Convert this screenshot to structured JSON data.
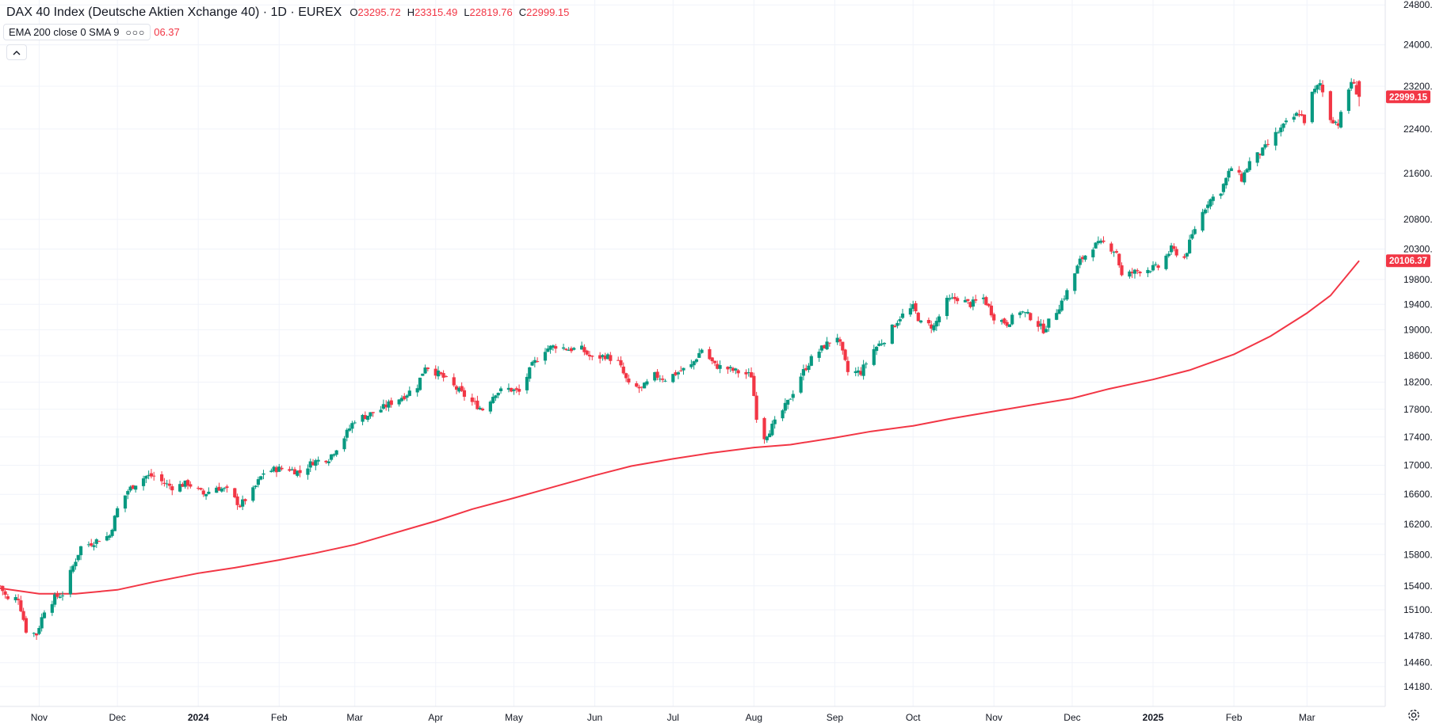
{
  "legend": {
    "title": "DAX 40 Index (Deutsche Aktien Xchange 40) · 1D · EUREX",
    "open_key": "O",
    "open": "23295.72",
    "high_key": "H",
    "high": "23315.49",
    "low_key": "L",
    "low": "22819.76",
    "close_key": "C",
    "close": "22999.15"
  },
  "indicator": {
    "label": "EMA 200 close 0 SMA 9",
    "more_icon": "more-dots-icon",
    "value_partial": "06.37"
  },
  "collapse_icon": "chevron-up-icon",
  "settings_icon": "gear-icon",
  "colors": {
    "up": "#089981",
    "down": "#f23645",
    "ema": "#f23645",
    "grid": "#f0f3fa",
    "axis_text": "#131722"
  },
  "chart_data": {
    "type": "candlestick",
    "title": "DAX 40 Index (Deutsche Aktien Xchange 40) · 1D · EUREX",
    "y_range": [
      13950,
      24900
    ],
    "y_scale": "log",
    "y_ticks": [
      "24800.00",
      "24000.00",
      "23200.00",
      "22400.00",
      "21600.00",
      "20800.00",
      "20300.00",
      "19800.00",
      "19400.00",
      "19000.00",
      "18600.00",
      "18200.00",
      "17800.00",
      "17400.00",
      "17000.00",
      "16600.00",
      "16200.00",
      "15800.00",
      "15400.00",
      "15100.00",
      "14780.00",
      "14460.00",
      "14180.00"
    ],
    "x_range": [
      "2023-10-17",
      "2025-03-31"
    ],
    "x_ticks": [
      {
        "date": "2023-11-01",
        "label": "Nov",
        "bold": false
      },
      {
        "date": "2023-12-01",
        "label": "Dec",
        "bold": false
      },
      {
        "date": "2024-01-01",
        "label": "2024",
        "bold": true
      },
      {
        "date": "2024-02-01",
        "label": "Feb",
        "bold": false
      },
      {
        "date": "2024-03-01",
        "label": "Mar",
        "bold": false
      },
      {
        "date": "2024-04-01",
        "label": "Apr",
        "bold": false
      },
      {
        "date": "2024-05-01",
        "label": "May",
        "bold": false
      },
      {
        "date": "2024-06-01",
        "label": "Jun",
        "bold": false
      },
      {
        "date": "2024-07-01",
        "label": "Jul",
        "bold": false
      },
      {
        "date": "2024-08-01",
        "label": "Aug",
        "bold": false
      },
      {
        "date": "2024-09-01",
        "label": "Sep",
        "bold": false
      },
      {
        "date": "2024-10-01",
        "label": "Oct",
        "bold": false
      },
      {
        "date": "2024-11-01",
        "label": "Nov",
        "bold": false
      },
      {
        "date": "2024-12-01",
        "label": "Dec",
        "bold": false
      },
      {
        "date": "2025-01-01",
        "label": "2025",
        "bold": true
      },
      {
        "date": "2025-02-01",
        "label": "Feb",
        "bold": false
      },
      {
        "date": "2025-03-01",
        "label": "Mar",
        "bold": false
      }
    ],
    "close_path": [
      [
        "2023-10-17",
        15400
      ],
      [
        "2023-10-20",
        15220
      ],
      [
        "2023-10-24",
        15250
      ],
      [
        "2023-10-27",
        14850
      ],
      [
        "2023-10-31",
        14800
      ],
      [
        "2023-11-03",
        15100
      ],
      [
        "2023-11-07",
        15250
      ],
      [
        "2023-11-10",
        15300
      ],
      [
        "2023-11-14",
        15650
      ],
      [
        "2023-11-17",
        15900
      ],
      [
        "2023-11-21",
        15950
      ],
      [
        "2023-11-24",
        16000
      ],
      [
        "2023-11-28",
        16050
      ],
      [
        "2023-12-01",
        16400
      ],
      [
        "2023-12-05",
        16650
      ],
      [
        "2023-12-08",
        16750
      ],
      [
        "2023-12-12",
        16850
      ],
      [
        "2023-12-15",
        16850
      ],
      [
        "2023-12-19",
        16750
      ],
      [
        "2023-12-22",
        16700
      ],
      [
        "2023-12-28",
        16750
      ],
      [
        "2024-01-03",
        16600
      ],
      [
        "2024-01-08",
        16700
      ],
      [
        "2024-01-12",
        16650
      ],
      [
        "2024-01-17",
        16450
      ],
      [
        "2024-01-22",
        16650
      ],
      [
        "2024-01-26",
        16900
      ],
      [
        "2024-01-31",
        16950
      ],
      [
        "2024-02-05",
        16950
      ],
      [
        "2024-02-09",
        16900
      ],
      [
        "2024-02-14",
        17050
      ],
      [
        "2024-02-20",
        17100
      ],
      [
        "2024-02-26",
        17400
      ],
      [
        "2024-03-01",
        17650
      ],
      [
        "2024-03-05",
        17700
      ],
      [
        "2024-03-11",
        17800
      ],
      [
        "2024-03-15",
        17900
      ],
      [
        "2024-03-20",
        18000
      ],
      [
        "2024-03-25",
        18150
      ],
      [
        "2024-03-28",
        18450
      ],
      [
        "2024-04-03",
        18300
      ],
      [
        "2024-04-09",
        18100
      ],
      [
        "2024-04-15",
        17900
      ],
      [
        "2024-04-19",
        17800
      ],
      [
        "2024-04-24",
        18050
      ],
      [
        "2024-04-29",
        18100
      ],
      [
        "2024-05-03",
        18050
      ],
      [
        "2024-05-08",
        18450
      ],
      [
        "2024-05-13",
        18700
      ],
      [
        "2024-05-17",
        18750
      ],
      [
        "2024-05-22",
        18700
      ],
      [
        "2024-05-27",
        18700
      ],
      [
        "2024-05-31",
        18550
      ],
      [
        "2024-06-05",
        18600
      ],
      [
        "2024-06-10",
        18500
      ],
      [
        "2024-06-14",
        18150
      ],
      [
        "2024-06-19",
        18100
      ],
      [
        "2024-06-24",
        18300
      ],
      [
        "2024-06-28",
        18250
      ],
      [
        "2024-07-03",
        18350
      ],
      [
        "2024-07-08",
        18450
      ],
      [
        "2024-07-12",
        18700
      ],
      [
        "2024-07-17",
        18450
      ],
      [
        "2024-07-22",
        18400
      ],
      [
        "2024-07-26",
        18350
      ],
      [
        "2024-07-31",
        18300
      ],
      [
        "2024-08-02",
        17700
      ],
      [
        "2024-08-05",
        17400
      ],
      [
        "2024-08-09",
        17600
      ],
      [
        "2024-08-14",
        17900
      ],
      [
        "2024-08-19",
        18300
      ],
      [
        "2024-08-23",
        18550
      ],
      [
        "2024-08-28",
        18750
      ],
      [
        "2024-09-02",
        18900
      ],
      [
        "2024-09-06",
        18350
      ],
      [
        "2024-09-11",
        18350
      ],
      [
        "2024-09-16",
        18700
      ],
      [
        "2024-09-20",
        18850
      ],
      [
        "2024-09-26",
        19200
      ],
      [
        "2024-10-01",
        19350
      ],
      [
        "2024-10-04",
        19100
      ],
      [
        "2024-10-09",
        19050
      ],
      [
        "2024-10-14",
        19450
      ],
      [
        "2024-10-18",
        19500
      ],
      [
        "2024-10-23",
        19400
      ],
      [
        "2024-10-28",
        19500
      ],
      [
        "2024-11-01",
        19200
      ],
      [
        "2024-11-06",
        19100
      ],
      [
        "2024-11-11",
        19300
      ],
      [
        "2024-11-15",
        19200
      ],
      [
        "2024-11-20",
        19000
      ],
      [
        "2024-11-25",
        19300
      ],
      [
        "2024-11-29",
        19600
      ],
      [
        "2024-12-04",
        20100
      ],
      [
        "2024-12-09",
        20350
      ],
      [
        "2024-12-13",
        20400
      ],
      [
        "2024-12-18",
        20250
      ],
      [
        "2024-12-20",
        19850
      ],
      [
        "2024-12-27",
        19950
      ],
      [
        "2025-01-03",
        20000
      ],
      [
        "2025-01-08",
        20300
      ],
      [
        "2025-01-13",
        20150
      ],
      [
        "2025-01-17",
        20650
      ],
      [
        "2025-01-22",
        21100
      ],
      [
        "2025-01-27",
        21300
      ],
      [
        "2025-01-31",
        21700
      ],
      [
        "2025-02-04",
        21500
      ],
      [
        "2025-02-07",
        21800
      ],
      [
        "2025-02-12",
        22000
      ],
      [
        "2025-02-17",
        22300
      ],
      [
        "2025-02-21",
        22500
      ],
      [
        "2025-02-26",
        22700
      ],
      [
        "2025-02-28",
        22550
      ],
      [
        "2025-03-03",
        23050
      ],
      [
        "2025-03-06",
        23250
      ],
      [
        "2025-03-10",
        22600
      ],
      [
        "2025-03-13",
        22500
      ],
      [
        "2025-03-18",
        23300
      ],
      [
        "2025-03-21",
        22999
      ]
    ],
    "last_candle": {
      "date": "2025-03-21",
      "open": 23295.72,
      "high": 23315.49,
      "low": 22819.76,
      "close": 22999.15
    },
    "series": [
      {
        "name": "EMA 200",
        "line": [
          [
            "2023-10-17",
            15370
          ],
          [
            "2023-11-01",
            15300
          ],
          [
            "2023-11-15",
            15300
          ],
          [
            "2023-12-01",
            15350
          ],
          [
            "2023-12-15",
            15450
          ],
          [
            "2024-01-01",
            15560
          ],
          [
            "2024-01-15",
            15630
          ],
          [
            "2024-02-01",
            15730
          ],
          [
            "2024-02-15",
            15820
          ],
          [
            "2024-03-01",
            15930
          ],
          [
            "2024-03-15",
            16070
          ],
          [
            "2024-04-01",
            16240
          ],
          [
            "2024-04-15",
            16400
          ],
          [
            "2024-05-01",
            16550
          ],
          [
            "2024-05-15",
            16690
          ],
          [
            "2024-06-01",
            16860
          ],
          [
            "2024-06-15",
            16990
          ],
          [
            "2024-07-01",
            17090
          ],
          [
            "2024-07-15",
            17170
          ],
          [
            "2024-08-01",
            17250
          ],
          [
            "2024-08-15",
            17290
          ],
          [
            "2024-09-01",
            17390
          ],
          [
            "2024-09-15",
            17480
          ],
          [
            "2024-10-01",
            17560
          ],
          [
            "2024-10-15",
            17660
          ],
          [
            "2024-11-01",
            17770
          ],
          [
            "2024-11-15",
            17860
          ],
          [
            "2024-12-01",
            17960
          ],
          [
            "2024-12-15",
            18100
          ],
          [
            "2025-01-01",
            18240
          ],
          [
            "2025-01-15",
            18380
          ],
          [
            "2025-02-01",
            18620
          ],
          [
            "2025-02-15",
            18900
          ],
          [
            "2025-03-01",
            19260
          ],
          [
            "2025-03-10",
            19540
          ],
          [
            "2025-03-21",
            20106.37
          ]
        ],
        "last_value": "20106.37"
      }
    ],
    "price_labels": [
      {
        "value": 22999.15,
        "text": "22999.15"
      },
      {
        "value": 20106.37,
        "text": "20106.37"
      }
    ],
    "xlabel": "",
    "ylabel": "",
    "grid": true,
    "legend_position": "top-left"
  }
}
